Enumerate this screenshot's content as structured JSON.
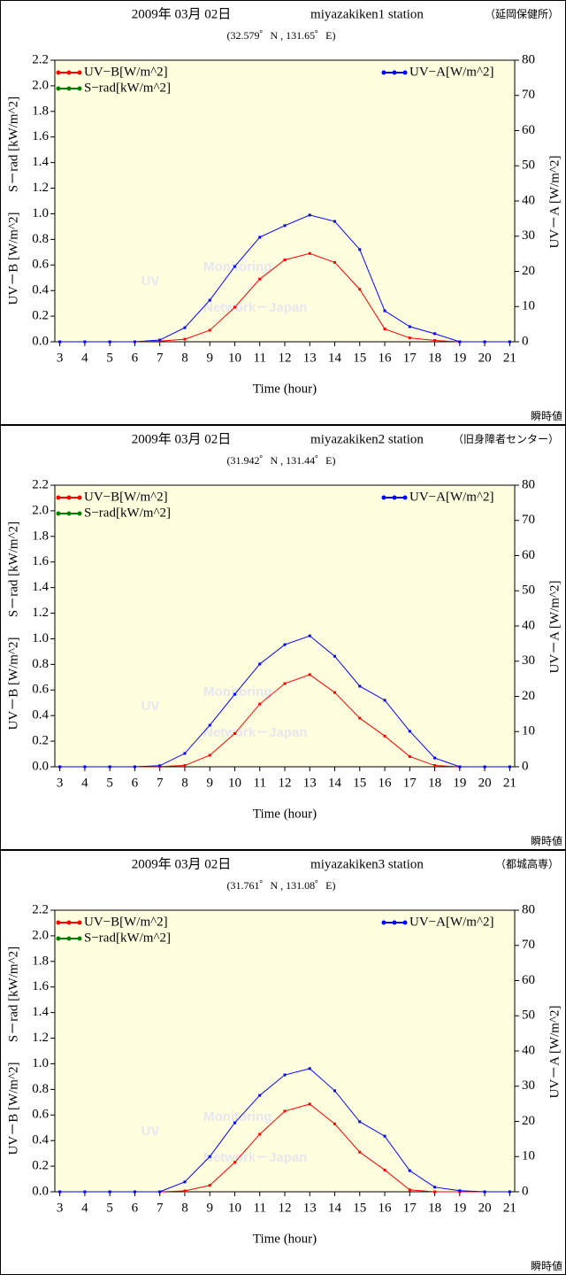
{
  "chart_data": [
    {
      "type": "line",
      "title": "2009年 03月 02日",
      "station": "miyazakiken1 station",
      "location": "（延岡保健所）",
      "coordinates": "(32.579゜N , 131.65゜E)",
      "xlabel": "Time (hour)",
      "ylabel": "UV－B [W/m^2]",
      "ylabel2": "S－rad [kW/m^2]",
      "y2label": "UV－A [W/m^2]",
      "watermark": [
        "UV",
        "Monitoring",
        "Network－Japan"
      ],
      "footnote": "瞬時値",
      "x": [
        3,
        4,
        5,
        6,
        7,
        8,
        9,
        10,
        11,
        12,
        13,
        14,
        15,
        16,
        17,
        18,
        19,
        20,
        21
      ],
      "xlim": [
        2.8,
        21.2
      ],
      "xticks": [
        3,
        4,
        5,
        6,
        7,
        8,
        9,
        10,
        11,
        12,
        13,
        14,
        15,
        16,
        17,
        18,
        19,
        20,
        21
      ],
      "ylim": [
        0,
        2.2
      ],
      "yticks": [
        {
          "value": 0,
          "label": "0.0"
        },
        {
          "value": 0.2,
          "label": "0.2"
        },
        {
          "value": 0.4,
          "label": "0.4"
        },
        {
          "value": 0.6,
          "label": "0.6"
        },
        {
          "value": 0.8,
          "label": "0.8"
        },
        {
          "value": 1,
          "label": "1.0"
        },
        {
          "value": 1.2,
          "label": "1.2"
        },
        {
          "value": 1.4,
          "label": "1.4"
        },
        {
          "value": 1.6,
          "label": "1.6"
        },
        {
          "value": 1.8,
          "label": "1.8"
        },
        {
          "value": 2,
          "label": "2.0"
        },
        {
          "value": 2.2,
          "label": "2.2"
        }
      ],
      "y2lim": [
        0,
        80
      ],
      "y2ticks": [
        0,
        10,
        20,
        30,
        40,
        50,
        60,
        70,
        80
      ],
      "series": [
        {
          "name": "UV−B[W/m^2]",
          "color": "#ff0000",
          "axis": "y",
          "values": [
            0,
            0,
            0,
            0,
            0.005,
            0.02,
            0.09,
            0.27,
            0.49,
            0.64,
            0.69,
            0.62,
            0.41,
            0.1,
            0.03,
            0.01,
            0,
            0,
            0
          ]
        },
        {
          "name": "S−rad[kW/m^2]",
          "color": "#008000",
          "axis": "y",
          "values": [
            null,
            null,
            null,
            null,
            null,
            null,
            null,
            null,
            null,
            null,
            null,
            null,
            null,
            null,
            null,
            null,
            null,
            null,
            null
          ]
        },
        {
          "name": "UV−A[W/m^2]",
          "color": "#0000ff",
          "axis": "y2",
          "values": [
            0,
            0,
            0,
            0,
            0.5,
            4,
            11.8,
            21.4,
            29.7,
            33,
            36,
            34.2,
            26.2,
            8.8,
            4.3,
            2.3,
            0,
            0,
            0
          ]
        }
      ]
    },
    {
      "type": "line",
      "title": "2009年 03月 02日",
      "station": "miyazakiken2 station",
      "location": "（旧身障者センター）",
      "coordinates": "(31.942゜N , 131.44゜E)",
      "xlabel": "Time (hour)",
      "ylabel": "UV－B [W/m^2]",
      "ylabel2": "S－rad [kW/m^2]",
      "y2label": "UV－A [W/m^2]",
      "watermark": [
        "UV",
        "Monitoring",
        "Network－Japan"
      ],
      "footnote": "瞬時値",
      "x": [
        3,
        4,
        5,
        6,
        7,
        8,
        9,
        10,
        11,
        12,
        13,
        14,
        15,
        16,
        17,
        18,
        19,
        20,
        21
      ],
      "xlim": [
        2.8,
        21.2
      ],
      "xticks": [
        3,
        4,
        5,
        6,
        7,
        8,
        9,
        10,
        11,
        12,
        13,
        14,
        15,
        16,
        17,
        18,
        19,
        20,
        21
      ],
      "ylim": [
        0,
        2.2
      ],
      "yticks": [
        {
          "value": 0,
          "label": "0.0"
        },
        {
          "value": 0.2,
          "label": "0.2"
        },
        {
          "value": 0.4,
          "label": "0.4"
        },
        {
          "value": 0.6,
          "label": "0.6"
        },
        {
          "value": 0.8,
          "label": "0.8"
        },
        {
          "value": 1,
          "label": "1.0"
        },
        {
          "value": 1.2,
          "label": "1.2"
        },
        {
          "value": 1.4,
          "label": "1.4"
        },
        {
          "value": 1.6,
          "label": "1.6"
        },
        {
          "value": 1.8,
          "label": "1.8"
        },
        {
          "value": 2,
          "label": "2.0"
        },
        {
          "value": 2.2,
          "label": "2.2"
        }
      ],
      "y2lim": [
        0,
        80
      ],
      "y2ticks": [
        0,
        10,
        20,
        30,
        40,
        50,
        60,
        70,
        80
      ],
      "series": [
        {
          "name": "UV−B[W/m^2]",
          "color": "#ff0000",
          "axis": "y",
          "values": [
            0,
            0,
            0,
            0,
            0.002,
            0.01,
            0.09,
            0.26,
            0.49,
            0.65,
            0.72,
            0.58,
            0.38,
            0.24,
            0.08,
            0.01,
            0,
            0,
            0
          ]
        },
        {
          "name": "S−rad[kW/m^2]",
          "color": "#008000",
          "axis": "y",
          "values": [
            null,
            null,
            null,
            null,
            null,
            null,
            null,
            null,
            null,
            null,
            null,
            null,
            null,
            null,
            null,
            null,
            null,
            null,
            null
          ]
        },
        {
          "name": "UV−A[W/m^2]",
          "color": "#0000ff",
          "axis": "y2",
          "values": [
            0,
            0,
            0,
            0,
            0.3,
            3.8,
            11.8,
            20.6,
            29.2,
            34.7,
            37.2,
            31.4,
            22.9,
            18.9,
            10.1,
            2.5,
            0,
            0,
            0
          ]
        }
      ]
    },
    {
      "type": "line",
      "title": "2009年 03月 02日",
      "station": "miyazakiken3 station",
      "location": "（都城高専）",
      "coordinates": "(31.761゜N , 131.08゜E)",
      "xlabel": "Time (hour)",
      "ylabel": "UV－B [W/m^2]",
      "ylabel2": "S－rad [kW/m^2]",
      "y2label": "UV－A [W/m^2]",
      "watermark": [
        "UV",
        "Monitoring",
        "Network－Japan"
      ],
      "footnote": "瞬時値",
      "x": [
        3,
        4,
        5,
        6,
        7,
        8,
        9,
        10,
        11,
        12,
        13,
        14,
        15,
        16,
        17,
        18,
        19,
        20,
        21
      ],
      "xlim": [
        2.8,
        21.2
      ],
      "xticks": [
        3,
        4,
        5,
        6,
        7,
        8,
        9,
        10,
        11,
        12,
        13,
        14,
        15,
        16,
        17,
        18,
        19,
        20,
        21
      ],
      "ylim": [
        0,
        2.2
      ],
      "yticks": [
        {
          "value": 0,
          "label": "0.0"
        },
        {
          "value": 0.2,
          "label": "0.2"
        },
        {
          "value": 0.4,
          "label": "0.4"
        },
        {
          "value": 0.6,
          "label": "0.6"
        },
        {
          "value": 0.8,
          "label": "0.8"
        },
        {
          "value": 1,
          "label": "1.0"
        },
        {
          "value": 1.2,
          "label": "1.2"
        },
        {
          "value": 1.4,
          "label": "1.4"
        },
        {
          "value": 1.6,
          "label": "1.6"
        },
        {
          "value": 1.8,
          "label": "1.8"
        },
        {
          "value": 2,
          "label": "2.0"
        },
        {
          "value": 2.2,
          "label": "2.2"
        }
      ],
      "y2lim": [
        0,
        80
      ],
      "y2ticks": [
        0,
        10,
        20,
        30,
        40,
        50,
        60,
        70,
        80
      ],
      "series": [
        {
          "name": "UV−B[W/m^2]",
          "color": "#ff0000",
          "axis": "y",
          "values": [
            0,
            0,
            0,
            0,
            0,
            0.007,
            0.05,
            0.23,
            0.45,
            0.63,
            0.685,
            0.53,
            0.31,
            0.17,
            0.015,
            0,
            0,
            0,
            0
          ]
        },
        {
          "name": "S−rad[kW/m^2]",
          "color": "#008000",
          "axis": "y",
          "values": [
            null,
            null,
            null,
            null,
            null,
            null,
            null,
            null,
            null,
            null,
            null,
            null,
            null,
            null,
            null,
            null,
            null,
            null,
            null
          ]
        },
        {
          "name": "UV−A[W/m^2]",
          "color": "#0000ff",
          "axis": "y2",
          "values": [
            0,
            0,
            0,
            0,
            0,
            2.8,
            10,
            19.6,
            27.4,
            33.2,
            35,
            28.7,
            19.9,
            15.8,
            6,
            1.3,
            0.3,
            0,
            0
          ]
        }
      ]
    }
  ]
}
